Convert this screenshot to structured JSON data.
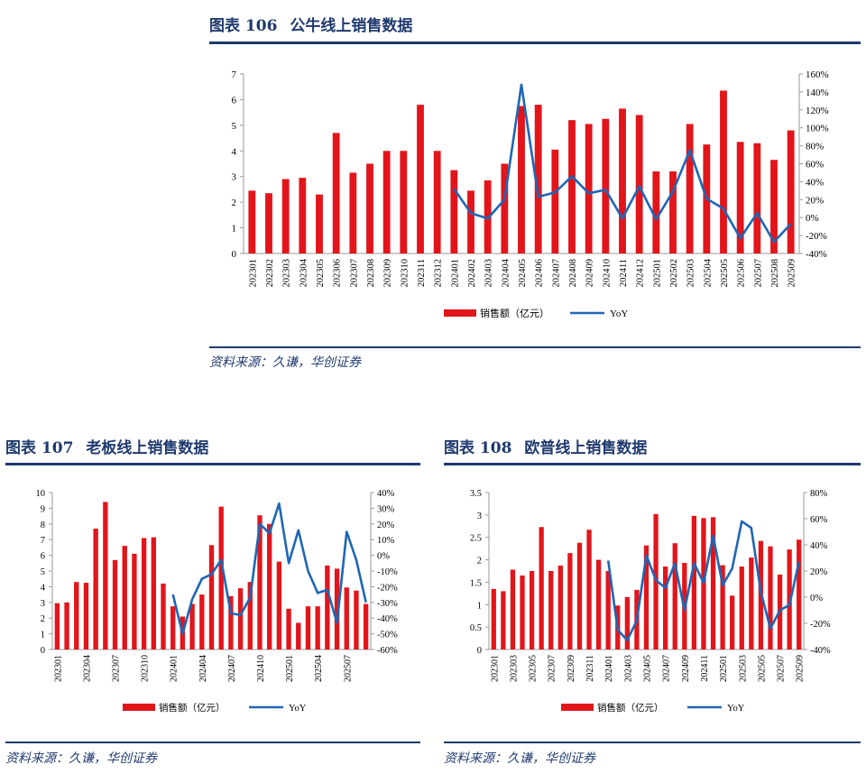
{
  "figures": [
    {
      "id": "fig106",
      "label": "图表 106",
      "title": "公牛线上销售数据",
      "source": "资料来源：久谦，华创证券",
      "chart_data": {
        "type": "bar",
        "categories": [
          "202301",
          "202302",
          "202303",
          "202304",
          "202305",
          "202306",
          "202307",
          "202308",
          "202309",
          "202310",
          "202311",
          "202312",
          "202401",
          "202402",
          "202403",
          "202404",
          "202405",
          "202406",
          "202407",
          "202408",
          "202409",
          "202410",
          "202411",
          "202412",
          "202501",
          "202502",
          "202503",
          "202504",
          "202505",
          "202506",
          "202507",
          "202508",
          "202509"
        ],
        "series": [
          {
            "name": "销售额（亿元）",
            "type": "bar",
            "axis": "left",
            "color": "#e2151b",
            "values": [
              2.45,
              2.35,
              2.9,
              2.95,
              2.3,
              4.7,
              3.15,
              3.5,
              4.0,
              4.0,
              5.8,
              4.0,
              3.25,
              2.45,
              2.85,
              3.5,
              5.75,
              5.8,
              4.05,
              5.2,
              5.05,
              5.25,
              5.65,
              5.4,
              3.2,
              3.2,
              5.05,
              4.25,
              6.35,
              4.35,
              4.3,
              3.65,
              4.8
            ]
          },
          {
            "name": "YoY",
            "type": "line",
            "axis": "right",
            "color": "#1f66b5",
            "values": [
              null,
              null,
              null,
              null,
              null,
              null,
              null,
              null,
              null,
              null,
              null,
              null,
              32,
              5,
              -1,
              20,
              148,
              23,
              28,
              46,
              27,
              31,
              -1,
              35,
              -2,
              29,
              75,
              21,
              10,
              -23,
              5,
              -27,
              -7
            ]
          }
        ],
        "left_axis": {
          "min": 0,
          "max": 7,
          "ticks": [
            "0",
            "1",
            "2",
            "3",
            "4",
            "5",
            "6",
            "7"
          ]
        },
        "right_axis": {
          "min": -40,
          "max": 160,
          "ticks": [
            "-40%",
            "-20%",
            "0%",
            "20%",
            "40%",
            "60%",
            "80%",
            "100%",
            "120%",
            "140%",
            "160%"
          ]
        },
        "x_tick_labels": [
          "202301",
          "202302",
          "202303",
          "202304",
          "202305",
          "202306",
          "202307",
          "202308",
          "202309",
          "202310",
          "202311",
          "202312",
          "202401",
          "202402",
          "202403",
          "202404",
          "202405",
          "202406",
          "202407",
          "202408",
          "202409",
          "202410",
          "202411",
          "202412",
          "202501",
          "202502",
          "202503",
          "202504",
          "202505",
          "202506",
          "202507",
          "202508",
          "202509"
        ],
        "legend": {
          "position": "bottom-center"
        }
      }
    },
    {
      "id": "fig107",
      "label": "图表 107",
      "title": "老板线上销售数据",
      "source": "资料来源：久谦，华创证券",
      "chart_data": {
        "type": "bar",
        "categories": [
          "202301",
          "202302",
          "202303",
          "202304",
          "202305",
          "202306",
          "202307",
          "202308",
          "202309",
          "202310",
          "202311",
          "202312",
          "202401",
          "202402",
          "202403",
          "202404",
          "202405",
          "202406",
          "202407",
          "202408",
          "202409",
          "202410",
          "202411",
          "202412",
          "202501",
          "202502",
          "202503",
          "202504",
          "202505",
          "202506",
          "202507",
          "202508",
          "202509"
        ],
        "series": [
          {
            "name": "销售额（亿元）",
            "type": "bar",
            "axis": "left",
            "color": "#e2151b",
            "values": [
              2.95,
              3.0,
              4.3,
              4.25,
              7.7,
              9.4,
              5.7,
              6.6,
              6.1,
              7.1,
              7.15,
              4.2,
              2.75,
              2.1,
              2.9,
              3.5,
              6.65,
              9.1,
              3.4,
              3.9,
              4.3,
              8.55,
              8.0,
              5.6,
              2.6,
              1.7,
              2.75,
              2.75,
              5.35,
              5.15,
              3.95,
              3.75,
              2.9
            ]
          },
          {
            "name": "YoY",
            "type": "line",
            "axis": "right",
            "color": "#1f66b5",
            "values": [
              null,
              null,
              null,
              null,
              null,
              null,
              null,
              null,
              null,
              null,
              null,
              null,
              -25,
              -50,
              -28,
              -15,
              -12,
              -3,
              -37,
              -38,
              -27,
              20,
              14,
              33,
              -5,
              16,
              -10,
              -24,
              -22,
              -43,
              15,
              -3,
              -30
            ]
          }
        ],
        "left_axis": {
          "min": 0,
          "max": 10,
          "ticks": [
            "0",
            "1",
            "2",
            "3",
            "4",
            "5",
            "6",
            "7",
            "8",
            "9",
            "10"
          ]
        },
        "right_axis": {
          "min": -60,
          "max": 40,
          "ticks": [
            "-60%",
            "-50%",
            "-40%",
            "-30%",
            "-20%",
            "-10%",
            "0%",
            "10%",
            "20%",
            "30%",
            "40%"
          ]
        },
        "x_tick_labels": [
          "202301",
          "202304",
          "202307",
          "202310",
          "202401",
          "202404",
          "202407",
          "202410",
          "202501",
          "202504",
          "202507"
        ],
        "legend": {
          "position": "bottom-center"
        }
      }
    },
    {
      "id": "fig108",
      "label": "图表 108",
      "title": "欧普线上销售数据",
      "source": "资料来源：久谦，华创证券",
      "chart_data": {
        "type": "bar",
        "categories": [
          "202301",
          "202302",
          "202303",
          "202304",
          "202305",
          "202306",
          "202307",
          "202308",
          "202309",
          "202310",
          "202311",
          "202312",
          "202401",
          "202402",
          "202403",
          "202404",
          "202405",
          "202406",
          "202407",
          "202408",
          "202409",
          "202410",
          "202411",
          "202412",
          "202501",
          "202502",
          "202503",
          "202504",
          "202505",
          "202506",
          "202507",
          "202508",
          "202509"
        ],
        "series": [
          {
            "name": "销售额（亿元）",
            "type": "bar",
            "axis": "left",
            "color": "#e2151b",
            "values": [
              1.35,
              1.3,
              1.78,
              1.65,
              1.75,
              2.73,
              1.75,
              1.87,
              2.15,
              2.38,
              2.67,
              2.0,
              1.75,
              0.98,
              1.17,
              1.33,
              2.32,
              3.02,
              1.85,
              2.37,
              1.93,
              2.98,
              2.93,
              2.95,
              1.88,
              1.2,
              1.85,
              2.05,
              2.42,
              2.3,
              1.67,
              2.23,
              2.45
            ]
          },
          {
            "name": "YoY",
            "type": "line",
            "axis": "right",
            "color": "#1f66b5",
            "values": [
              null,
              null,
              null,
              null,
              null,
              null,
              null,
              null,
              null,
              null,
              null,
              null,
              28,
              -25,
              -33,
              -18,
              32,
              13,
              7,
              26,
              -10,
              26,
              11,
              47,
              9,
              22,
              58,
              53,
              4,
              -24,
              -10,
              -6,
              27
            ]
          }
        ],
        "left_axis": {
          "min": 0,
          "max": 3.5,
          "ticks": [
            "0",
            "0.5",
            "1",
            "1.5",
            "2",
            "2.5",
            "3",
            "3.5"
          ]
        },
        "right_axis": {
          "min": -40,
          "max": 80,
          "ticks": [
            "-40%",
            "-20%",
            "0%",
            "20%",
            "40%",
            "60%",
            "80%"
          ]
        },
        "x_tick_labels": [
          "202301",
          "202303",
          "202305",
          "202307",
          "202309",
          "202311",
          "202401",
          "202403",
          "202405",
          "202407",
          "202409",
          "202411",
          "202501",
          "202503",
          "202505",
          "202507",
          "202509"
        ],
        "legend": {
          "position": "bottom-center"
        }
      }
    }
  ]
}
